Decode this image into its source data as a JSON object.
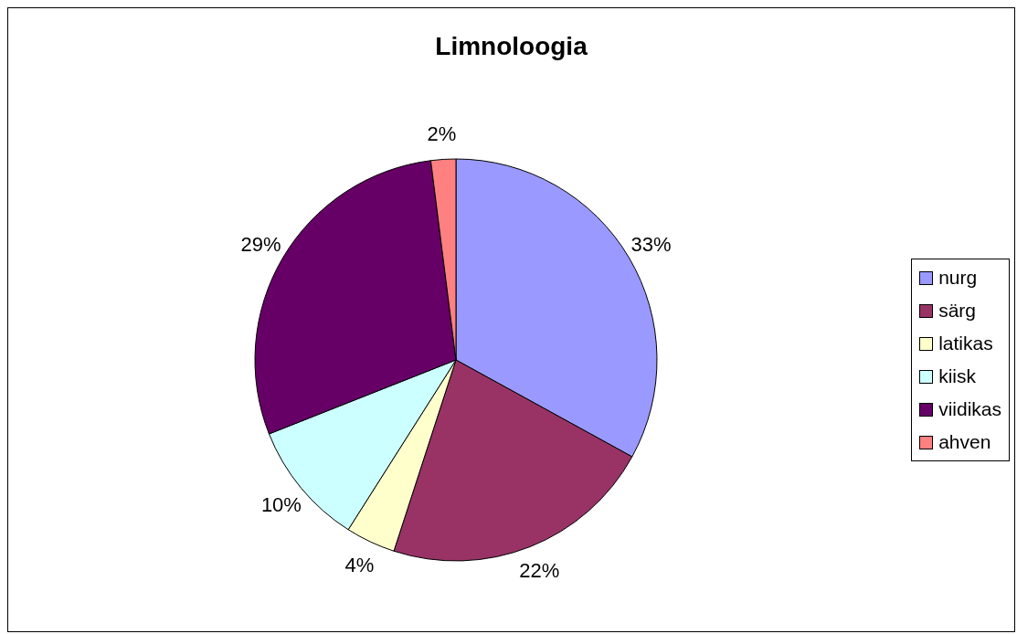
{
  "chart_data": {
    "type": "pie",
    "title": "Limnoloogia",
    "categories": [
      "nurg",
      "särg",
      "latikas",
      "kiisk",
      "viidikas",
      "ahven"
    ],
    "values": [
      33,
      22,
      4,
      10,
      29,
      2
    ],
    "value_labels": [
      "33%",
      "22%",
      "4%",
      "10%",
      "29%",
      "2%"
    ],
    "colors": [
      "#9999ff",
      "#993366",
      "#ffffcc",
      "#ccffff",
      "#660066",
      "#ff8080"
    ],
    "legend": "right"
  }
}
